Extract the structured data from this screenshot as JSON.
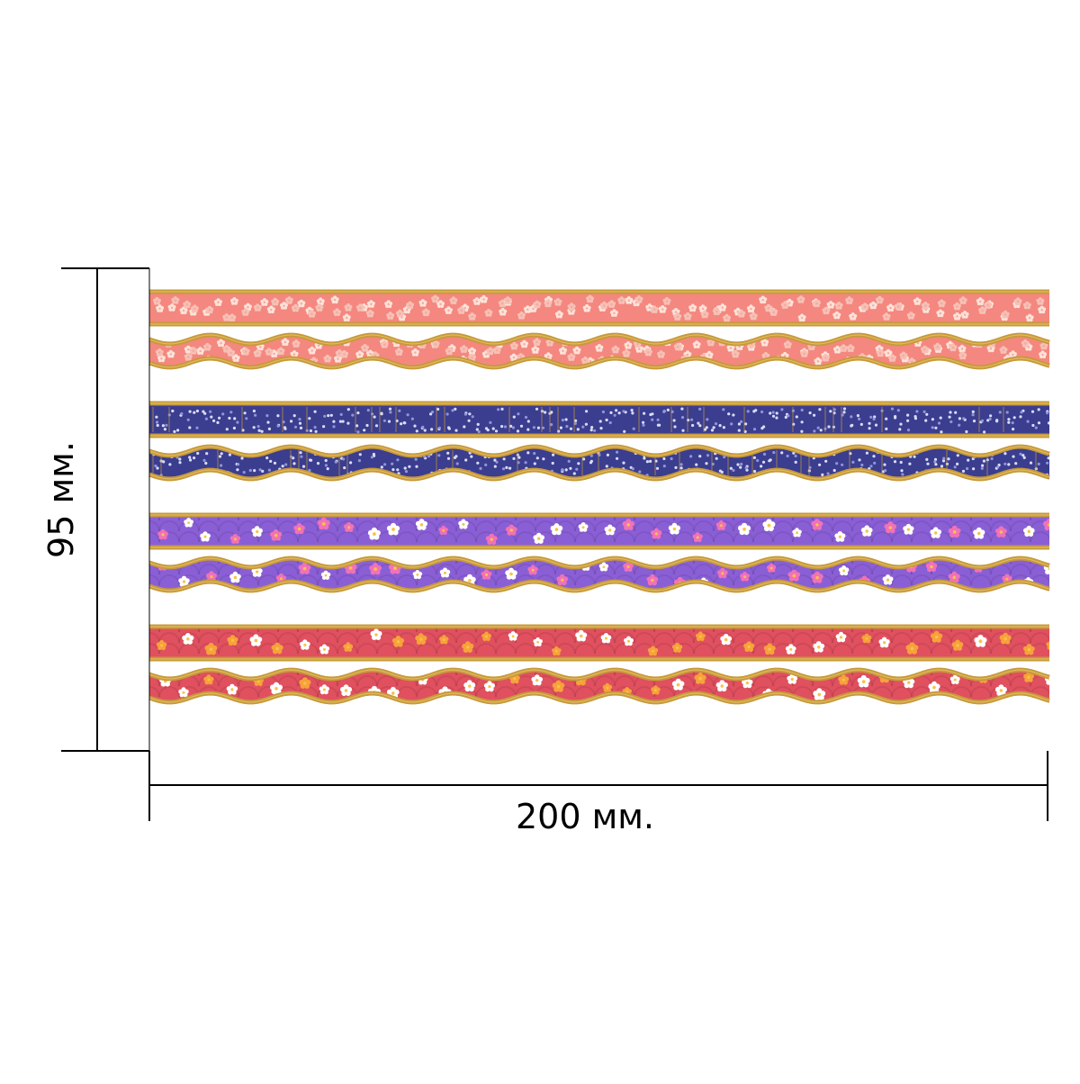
{
  "dimensions": {
    "height_label": "95 мм.",
    "width_label": "200 мм."
  },
  "strips": [
    {
      "pair": "peach-blossom",
      "edge": "straight",
      "base_color": "#f4877f",
      "pattern_color": "#fde2d8",
      "accent_color": "#f7c0b5",
      "motif": "small-flowers"
    },
    {
      "pair": "peach-blossom",
      "edge": "wavy",
      "base_color": "#f4877f",
      "pattern_color": "#fde2d8",
      "accent_color": "#f7c0b5",
      "motif": "small-flowers"
    },
    {
      "pair": "navy-dots",
      "edge": "straight",
      "base_color": "#3b3d8f",
      "pattern_color": "#d9dcf5",
      "accent_color": "#8f95d8",
      "motif": "tiny-dots"
    },
    {
      "pair": "navy-dots",
      "edge": "wavy",
      "base_color": "#3b3d8f",
      "pattern_color": "#d9dcf5",
      "accent_color": "#8f95d8",
      "motif": "tiny-dots"
    },
    {
      "pair": "lavender-plum",
      "edge": "straight",
      "base_color": "#8a5fd6",
      "pattern_color": "#ffffff",
      "accent_color": "#f072b8",
      "motif": "plum-blossom"
    },
    {
      "pair": "lavender-plum",
      "edge": "wavy",
      "base_color": "#8a5fd6",
      "pattern_color": "#ffffff",
      "accent_color": "#f072b8",
      "motif": "plum-blossom"
    },
    {
      "pair": "rose-plum",
      "edge": "straight",
      "base_color": "#e0505f",
      "pattern_color": "#ffffff",
      "accent_color": "#f7a23a",
      "motif": "plum-blossom"
    },
    {
      "pair": "rose-plum",
      "edge": "wavy",
      "base_color": "#e0505f",
      "pattern_color": "#ffffff",
      "accent_color": "#f7a23a",
      "motif": "plum-blossom"
    }
  ],
  "colors": {
    "gold_edge": "#c79a3a",
    "gold_highlight": "#e6c06a",
    "dimension_line": "#000000"
  }
}
